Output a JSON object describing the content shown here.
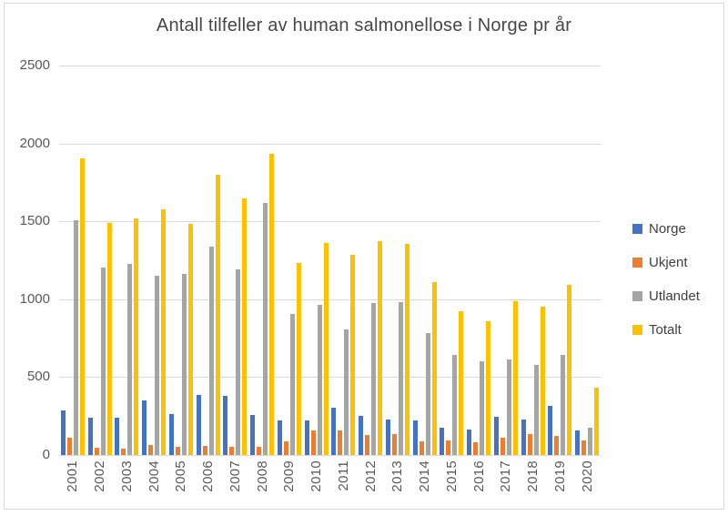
{
  "chart_data": {
    "type": "bar",
    "title": "Antall tilfeller av human salmonellose i Norge pr år",
    "xlabel": "",
    "ylabel": "",
    "ylim": [
      0,
      2500
    ],
    "yticks": [
      0,
      500,
      1000,
      1500,
      2000,
      2500
    ],
    "grid": true,
    "legend_position": "right",
    "categories": [
      "2001",
      "2002",
      "2003",
      "2004",
      "2005",
      "2006",
      "2007",
      "2008",
      "2009",
      "2010",
      "2011",
      "2012",
      "2013",
      "2014",
      "2015",
      "2016",
      "2017",
      "2018",
      "2019",
      "2020"
    ],
    "series": [
      {
        "name": "Norge",
        "color": "#4472C4",
        "values": [
          285,
          240,
          240,
          350,
          260,
          385,
          380,
          255,
          220,
          220,
          305,
          250,
          230,
          220,
          175,
          165,
          245,
          225,
          315,
          155
        ]
      },
      {
        "name": "Ukjent",
        "color": "#ED7D31",
        "values": [
          110,
          45,
          40,
          65,
          55,
          60,
          55,
          55,
          90,
          160,
          155,
          130,
          135,
          90,
          95,
          80,
          110,
          135,
          125,
          95
        ]
      },
      {
        "name": "Utlandet",
        "color": "#A5A5A5",
        "values": [
          1505,
          1205,
          1225,
          1150,
          1165,
          1335,
          1190,
          1620,
          905,
          965,
          805,
          975,
          980,
          780,
          640,
          600,
          615,
          580,
          640,
          175
        ]
      },
      {
        "name": "Totalt",
        "color": "#FFC000",
        "values": [
          1905,
          1490,
          1520,
          1580,
          1485,
          1800,
          1645,
          1935,
          1230,
          1360,
          1285,
          1370,
          1355,
          1110,
          925,
          860,
          985,
          950,
          1090,
          435
        ]
      }
    ]
  },
  "style": {
    "gridline_color": "#d9d9d9",
    "axis_text_color": "#595959",
    "title_color": "#474747",
    "background": "#ffffff"
  }
}
